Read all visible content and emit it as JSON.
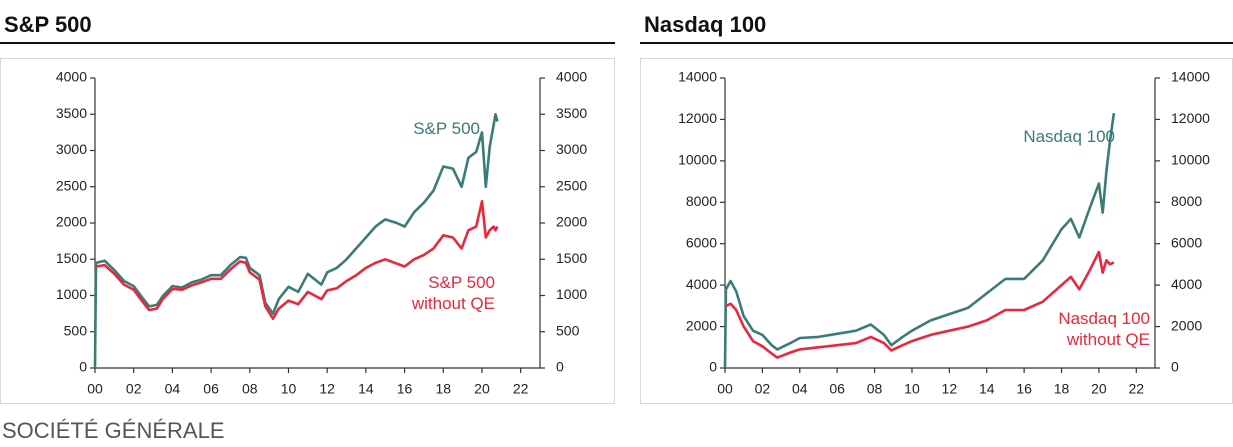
{
  "chart_data": [
    {
      "type": "line",
      "title": "S&P 500",
      "x": [
        2000,
        2000.05,
        2000.5,
        2001,
        2001.5,
        2002,
        2002.5,
        2002.8,
        2003.2,
        2003.5,
        2004,
        2004.5,
        2005,
        2005.5,
        2006,
        2006.5,
        2007,
        2007.5,
        2007.8,
        2008,
        2008.5,
        2008.8,
        2009.2,
        2009.5,
        2010,
        2010.5,
        2011,
        2011.7,
        2012,
        2012.5,
        2013,
        2013.5,
        2014,
        2014.5,
        2015,
        2015.6,
        2016,
        2016.5,
        2017,
        2017.5,
        2018,
        2018.5,
        2018.95,
        2019.3,
        2019.7,
        2020,
        2020.2,
        2020.4,
        2020.6,
        2020.7,
        2020.8
      ],
      "series": [
        {
          "name": "S&P 500",
          "color": "#3b7b78",
          "values": [
            0,
            1450,
            1480,
            1350,
            1200,
            1130,
            950,
            850,
            870,
            990,
            1130,
            1110,
            1180,
            1220,
            1280,
            1280,
            1420,
            1530,
            1520,
            1380,
            1280,
            900,
            750,
            950,
            1120,
            1050,
            1300,
            1150,
            1320,
            1380,
            1500,
            1650,
            1800,
            1950,
            2050,
            2000,
            1950,
            2150,
            2280,
            2450,
            2780,
            2750,
            2500,
            2900,
            2980,
            3250,
            2500,
            3050,
            3350,
            3500,
            3400
          ]
        },
        {
          "name": "S&P 500 without QE",
          "color": "#e8283c",
          "values": [
            null,
            1400,
            1420,
            1300,
            1150,
            1080,
            900,
            800,
            820,
            950,
            1090,
            1080,
            1140,
            1180,
            1230,
            1230,
            1360,
            1470,
            1450,
            1320,
            1220,
            850,
            680,
            820,
            930,
            880,
            1050,
            950,
            1070,
            1100,
            1200,
            1280,
            1380,
            1450,
            1500,
            1440,
            1400,
            1500,
            1560,
            1650,
            1830,
            1800,
            1650,
            1900,
            1950,
            2300,
            1800,
            1900,
            1950,
            1900,
            1950
          ]
        }
      ],
      "xlim": [
        2000,
        2023
      ],
      "xticks": [
        {
          "value": 2000,
          "label": "00"
        },
        {
          "value": 2002,
          "label": "02"
        },
        {
          "value": 2004,
          "label": "04"
        },
        {
          "value": 2006,
          "label": "06"
        },
        {
          "value": 2008,
          "label": "08"
        },
        {
          "value": 2010,
          "label": "10"
        },
        {
          "value": 2012,
          "label": "12"
        },
        {
          "value": 2014,
          "label": "14"
        },
        {
          "value": 2016,
          "label": "16"
        },
        {
          "value": 2018,
          "label": "18"
        },
        {
          "value": 2020,
          "label": "20"
        },
        {
          "value": 2022,
          "label": "22"
        }
      ],
      "ylim": [
        0,
        4000
      ],
      "yticks": [
        0,
        500,
        1000,
        1500,
        2000,
        2500,
        3000,
        3500,
        4000
      ],
      "y2lim": [
        0,
        4000
      ],
      "y2ticks": [
        0,
        500,
        1000,
        1500,
        2000,
        2500,
        3000,
        3500,
        4000
      ]
    },
    {
      "type": "line",
      "title": "Nasdaq 100",
      "x": [
        2000,
        2000.05,
        2000.3,
        2000.6,
        2001,
        2001.5,
        2002,
        2002.5,
        2002.8,
        2003.5,
        2004,
        2005,
        2006,
        2007,
        2007.8,
        2008.5,
        2008.9,
        2009.5,
        2010,
        2011,
        2012,
        2013,
        2014,
        2015,
        2016,
        2017,
        2018,
        2018.5,
        2018.95,
        2019.5,
        2020,
        2020.2,
        2020.4,
        2020.6,
        2020.8
      ],
      "series": [
        {
          "name": "Nasdaq 100",
          "color": "#3b7b78",
          "values": [
            0,
            3800,
            4200,
            3700,
            2500,
            1800,
            1600,
            1100,
            900,
            1200,
            1450,
            1500,
            1650,
            1800,
            2100,
            1600,
            1100,
            1500,
            1800,
            2300,
            2600,
            2900,
            3600,
            4300,
            4300,
            5200,
            6700,
            7200,
            6300,
            7700,
            8900,
            7500,
            9500,
            11000,
            12300
          ]
        },
        {
          "name": "Nasdaq 100 without QE",
          "color": "#e8283c",
          "values": [
            null,
            3000,
            3100,
            2800,
            2000,
            1300,
            1050,
            700,
            500,
            750,
            900,
            1000,
            1100,
            1200,
            1500,
            1200,
            850,
            1100,
            1300,
            1600,
            1800,
            2000,
            2300,
            2800,
            2800,
            3200,
            4000,
            4400,
            3800,
            4700,
            5600,
            4600,
            5200,
            5000,
            5100
          ]
        }
      ],
      "xlim": [
        2000,
        2023
      ],
      "xticks": [
        {
          "value": 2000,
          "label": "00"
        },
        {
          "value": 2002,
          "label": "02"
        },
        {
          "value": 2004,
          "label": "04"
        },
        {
          "value": 2006,
          "label": "06"
        },
        {
          "value": 2008,
          "label": "08"
        },
        {
          "value": 2010,
          "label": "10"
        },
        {
          "value": 2012,
          "label": "12"
        },
        {
          "value": 2014,
          "label": "14"
        },
        {
          "value": 2016,
          "label": "16"
        },
        {
          "value": 2018,
          "label": "18"
        },
        {
          "value": 2020,
          "label": "20"
        },
        {
          "value": 2022,
          "label": "22"
        }
      ],
      "ylim": [
        0,
        14000
      ],
      "yticks": [
        0,
        2000,
        4000,
        6000,
        8000,
        10000,
        12000,
        14000
      ],
      "y2lim": [
        0,
        14000
      ],
      "y2ticks": [
        0,
        2000,
        4000,
        6000,
        8000,
        10000,
        12000,
        14000
      ]
    }
  ],
  "source": "SOCIÉTÉ GÉNÉRALE"
}
